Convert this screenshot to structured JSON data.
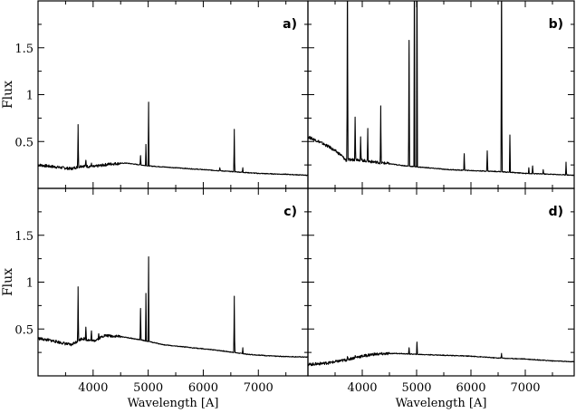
{
  "chart_data": [
    {
      "type": "line",
      "panel_label": "a)",
      "ylabel": "Flux",
      "xlabel": "",
      "xlim": [
        3000,
        7900
      ],
      "ylim": [
        0,
        2.0
      ],
      "yticks": [
        "0.5",
        "1",
        "1.5"
      ],
      "xticks": [],
      "continuum": [
        [
          3000,
          0.25
        ],
        [
          3300,
          0.23
        ],
        [
          3600,
          0.21
        ],
        [
          3800,
          0.24
        ],
        [
          4000,
          0.23
        ],
        [
          4300,
          0.26
        ],
        [
          4600,
          0.27
        ],
        [
          5000,
          0.24
        ],
        [
          5500,
          0.22
        ],
        [
          6000,
          0.2
        ],
        [
          6500,
          0.18
        ],
        [
          7000,
          0.16
        ],
        [
          7500,
          0.15
        ],
        [
          7900,
          0.14
        ]
      ],
      "lines": [
        [
          3727,
          0.68
        ],
        [
          3869,
          0.3
        ],
        [
          3970,
          0.27
        ],
        [
          4101,
          0.25
        ],
        [
          4861,
          0.35
        ],
        [
          4959,
          0.47
        ],
        [
          5007,
          0.92
        ],
        [
          6300,
          0.22
        ],
        [
          6563,
          0.63
        ],
        [
          6717,
          0.22
        ]
      ]
    },
    {
      "type": "line",
      "panel_label": "b)",
      "ylabel": "",
      "xlabel": "",
      "xlim": [
        3000,
        7900
      ],
      "ylim": [
        0,
        2.0
      ],
      "yticks": [],
      "xticks": [],
      "continuum": [
        [
          3000,
          0.55
        ],
        [
          3200,
          0.5
        ],
        [
          3400,
          0.44
        ],
        [
          3600,
          0.36
        ],
        [
          3700,
          0.3
        ],
        [
          3900,
          0.31
        ],
        [
          4100,
          0.29
        ],
        [
          4400,
          0.27
        ],
        [
          4800,
          0.24
        ],
        [
          5200,
          0.22
        ],
        [
          5600,
          0.2
        ],
        [
          6000,
          0.19
        ],
        [
          6500,
          0.18
        ],
        [
          7000,
          0.16
        ],
        [
          7500,
          0.15
        ],
        [
          7900,
          0.14
        ]
      ],
      "lines": [
        [
          3727,
          2.5
        ],
        [
          3869,
          0.76
        ],
        [
          3970,
          0.55
        ],
        [
          4101,
          0.64
        ],
        [
          4340,
          0.88
        ],
        [
          4861,
          1.58
        ],
        [
          4959,
          2.5
        ],
        [
          5007,
          2.5
        ],
        [
          5876,
          0.37
        ],
        [
          6300,
          0.4
        ],
        [
          6563,
          2.5
        ],
        [
          6717,
          0.57
        ],
        [
          7065,
          0.22
        ],
        [
          7135,
          0.24
        ],
        [
          7330,
          0.2
        ],
        [
          7750,
          0.28
        ]
      ]
    },
    {
      "type": "line",
      "panel_label": "c)",
      "ylabel": "Flux",
      "xlabel": "Wavelength [A]",
      "xlim": [
        3000,
        7900
      ],
      "ylim": [
        0,
        2.0
      ],
      "yticks": [
        "0.5",
        "1",
        "1.5"
      ],
      "xticks": [
        "4000",
        "5000",
        "6000",
        "7000"
      ],
      "continuum": [
        [
          3000,
          0.4
        ],
        [
          3300,
          0.37
        ],
        [
          3600,
          0.33
        ],
        [
          3800,
          0.4
        ],
        [
          4000,
          0.37
        ],
        [
          4200,
          0.43
        ],
        [
          4500,
          0.42
        ],
        [
          4900,
          0.38
        ],
        [
          5300,
          0.33
        ],
        [
          5800,
          0.3
        ],
        [
          6300,
          0.27
        ],
        [
          6800,
          0.23
        ],
        [
          7300,
          0.21
        ],
        [
          7900,
          0.2
        ]
      ],
      "lines": [
        [
          3727,
          0.95
        ],
        [
          3869,
          0.52
        ],
        [
          3970,
          0.48
        ],
        [
          4101,
          0.45
        ],
        [
          4861,
          0.72
        ],
        [
          4959,
          0.88
        ],
        [
          5007,
          1.27
        ],
        [
          6563,
          0.85
        ],
        [
          6717,
          0.3
        ]
      ]
    },
    {
      "type": "line",
      "panel_label": "d)",
      "ylabel": "",
      "xlabel": "Wavelength [A]",
      "xlim": [
        3000,
        7900
      ],
      "ylim": [
        0,
        2.0
      ],
      "yticks": [],
      "xticks": [
        "4000",
        "5000",
        "6000",
        "7000"
      ],
      "continuum": [
        [
          3000,
          0.12
        ],
        [
          3400,
          0.14
        ],
        [
          3700,
          0.17
        ],
        [
          3900,
          0.2
        ],
        [
          4200,
          0.23
        ],
        [
          4600,
          0.24
        ],
        [
          5000,
          0.23
        ],
        [
          5500,
          0.22
        ],
        [
          6000,
          0.21
        ],
        [
          6500,
          0.19
        ],
        [
          7000,
          0.18
        ],
        [
          7500,
          0.16
        ],
        [
          7900,
          0.15
        ]
      ],
      "lines": [
        [
          3727,
          0.2
        ],
        [
          3869,
          0.21
        ],
        [
          4861,
          0.3
        ],
        [
          5007,
          0.36
        ],
        [
          6563,
          0.24
        ]
      ]
    }
  ]
}
